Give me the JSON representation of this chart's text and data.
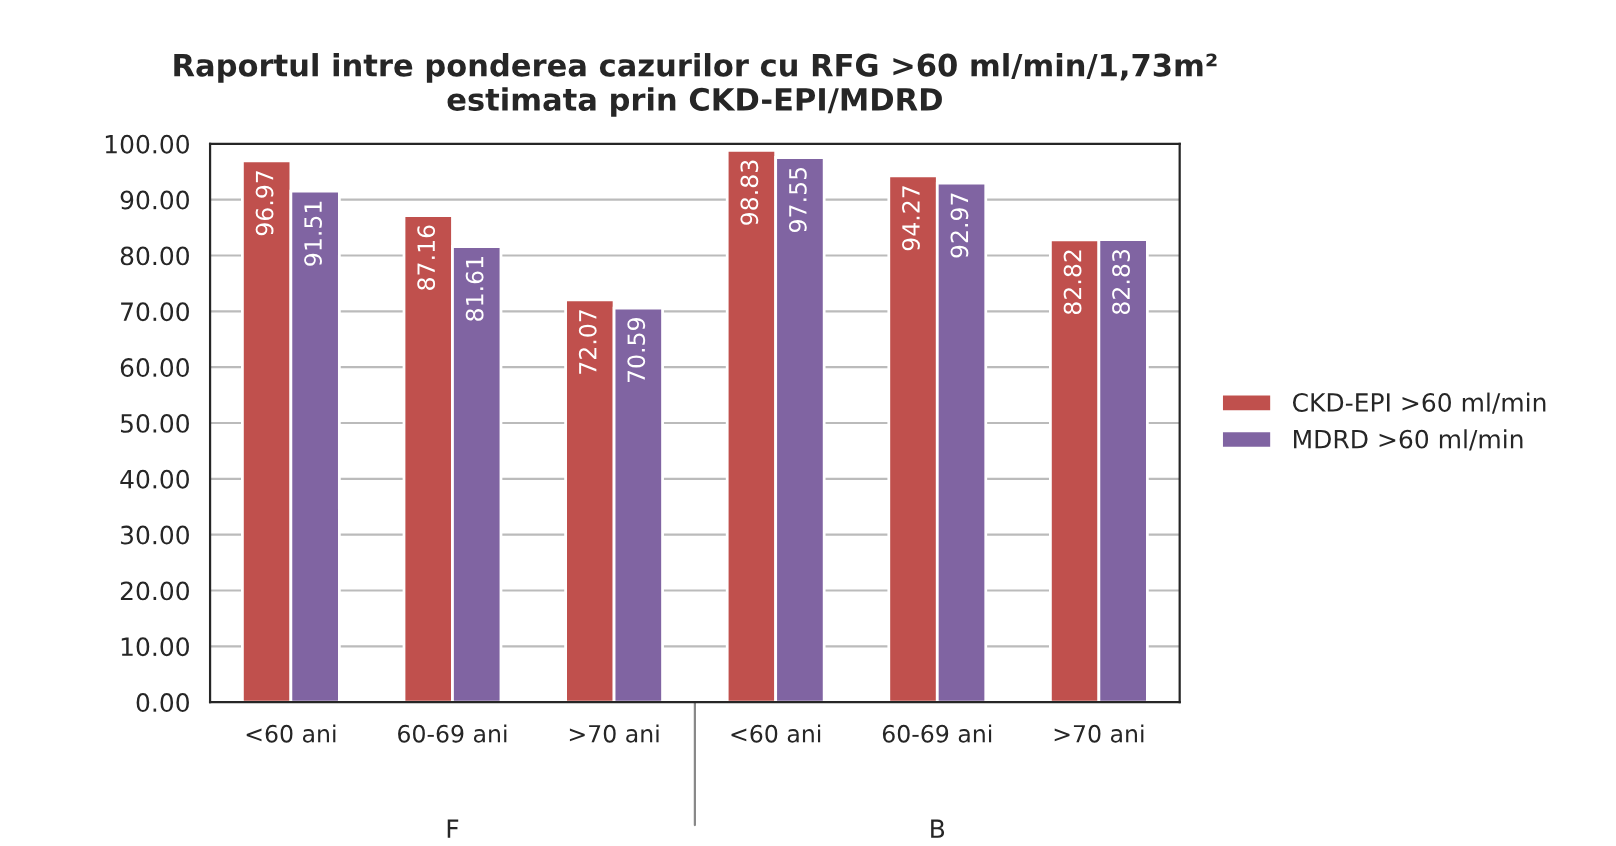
{
  "chart_data": {
    "type": "bar",
    "title": "Raportul intre ponderea cazurilor cu RFG >60 ml/min/1,73m²\nestimata prin CKD-EPI/MDRD",
    "categories": [
      "<60 ani",
      "60-69 ani",
      ">70 ani",
      "<60 ani",
      "60-69 ani",
      ">70 ani"
    ],
    "series": [
      {
        "name": "CKD-EPI >60 ml/min",
        "color": "#c0504d",
        "values": [
          96.97,
          87.16,
          72.07,
          98.83,
          94.27,
          82.82
        ]
      },
      {
        "name": "MDRD >60 ml/min",
        "color": "#8064a2",
        "values": [
          91.51,
          81.61,
          70.59,
          97.55,
          92.97,
          82.83
        ]
      }
    ],
    "annotations": [
      "F",
      "B"
    ],
    "ylim": [
      0,
      100
    ],
    "yticks": [
      {
        "value": 0,
        "label": "0.00"
      },
      {
        "value": 10,
        "label": "10.00"
      },
      {
        "value": 20,
        "label": "20.00"
      },
      {
        "value": 30,
        "label": "30.00"
      },
      {
        "value": 40,
        "label": "40.00"
      },
      {
        "value": 50,
        "label": "50.00"
      },
      {
        "value": 60,
        "label": "60.00"
      },
      {
        "value": 70,
        "label": "70.00"
      },
      {
        "value": 80,
        "label": "80.00"
      },
      {
        "value": 90,
        "label": "90.00"
      },
      {
        "value": 100,
        "label": "100.00"
      }
    ],
    "grid": "y",
    "legend": "right",
    "data_labels": true
  }
}
